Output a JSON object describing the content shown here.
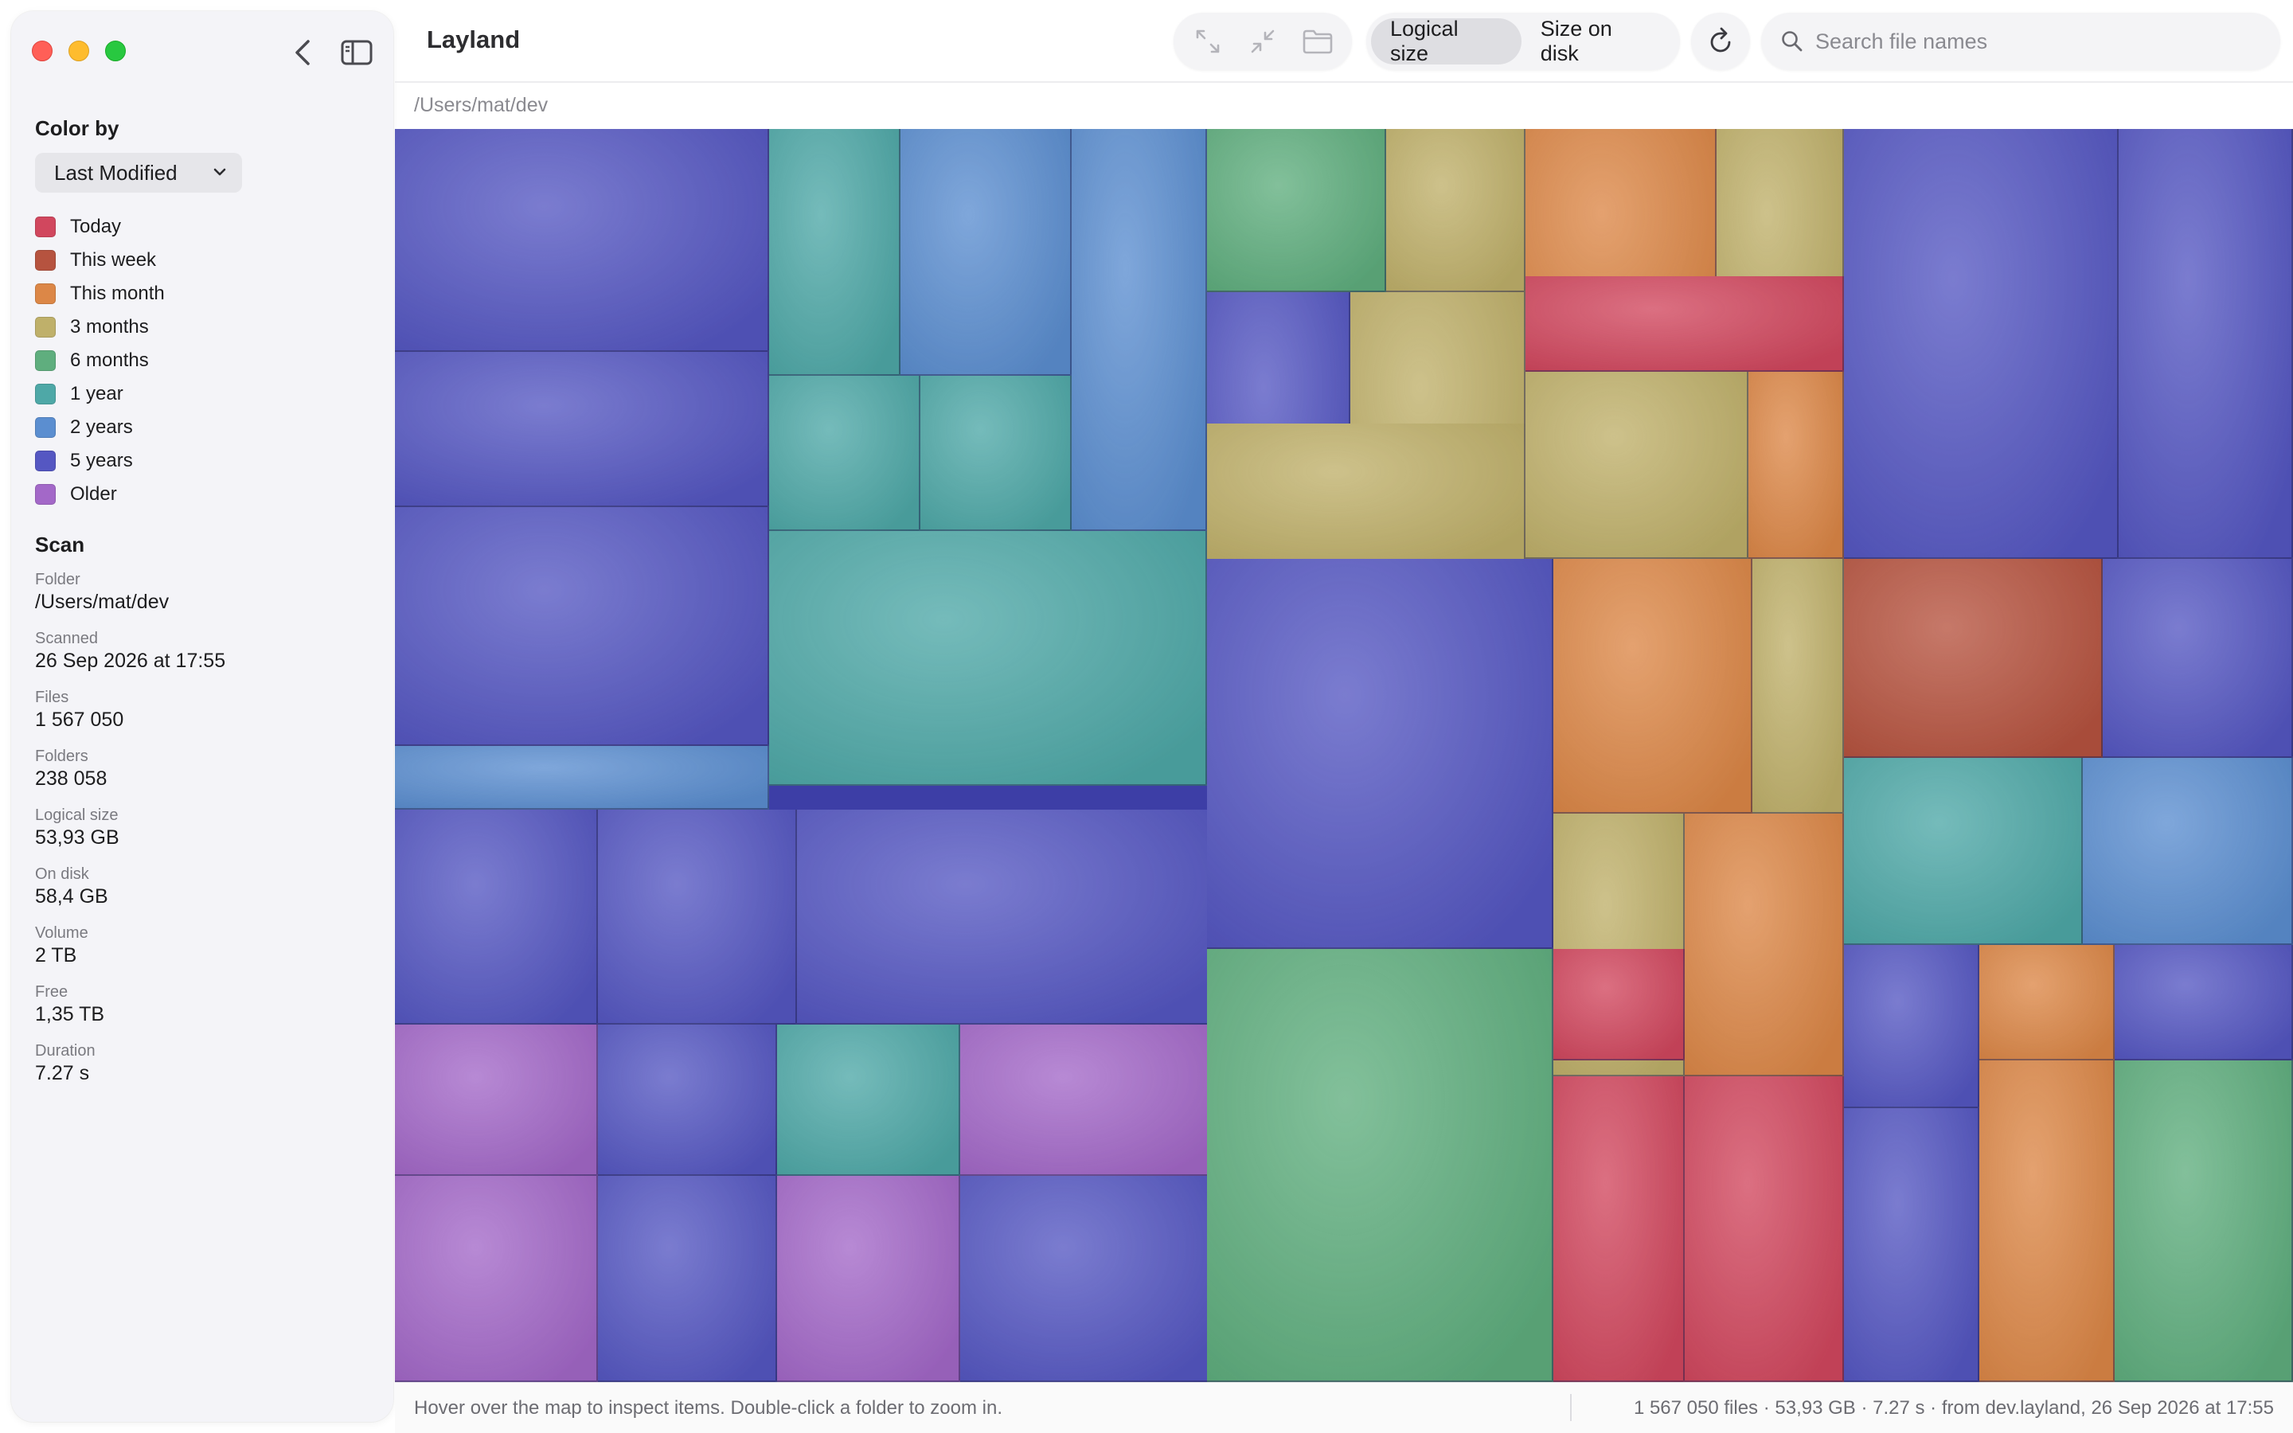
{
  "window": {
    "title": "Layland"
  },
  "sidebar": {
    "color_by_heading": "Color by",
    "color_by_value": "Last Modified",
    "legend": [
      {
        "label": "Today",
        "color": "#d1475e"
      },
      {
        "label": "This week",
        "color": "#b6533f"
      },
      {
        "label": "This month",
        "color": "#dc8747"
      },
      {
        "label": "3 months",
        "color": "#bfb06a"
      },
      {
        "label": "6 months",
        "color": "#5fae7e"
      },
      {
        "label": "1 year",
        "color": "#4ea8a7"
      },
      {
        "label": "2 years",
        "color": "#5b8ed0"
      },
      {
        "label": "5 years",
        "color": "#5557c2"
      },
      {
        "label": "Older",
        "color": "#a368c8"
      }
    ],
    "scan_heading": "Scan",
    "scan": [
      {
        "key": "Folder",
        "value": "/Users/mat/dev"
      },
      {
        "key": "Scanned",
        "value": "26 Sep 2026 at 17:55"
      },
      {
        "key": "Files",
        "value": "1 567 050"
      },
      {
        "key": "Folders",
        "value": "238 058"
      },
      {
        "key": "Logical size",
        "value": "53,93 GB"
      },
      {
        "key": "On disk",
        "value": "58,4 GB"
      },
      {
        "key": "Volume",
        "value": "2 TB"
      },
      {
        "key": "Free",
        "value": "1,35 TB"
      },
      {
        "key": "Duration",
        "value": "7.27 s"
      }
    ]
  },
  "toolbar": {
    "icons": [
      "expand-icon",
      "collapse-icon",
      "folder-icon",
      "refresh-icon",
      "search-icon"
    ],
    "size_modes": [
      {
        "label": "Logical size",
        "active": true
      },
      {
        "label": "Size on disk",
        "active": false
      }
    ],
    "search_placeholder": "Search file names"
  },
  "breadcrumb": "/Users/mat/dev",
  "status": {
    "hint": "Hover over the map to inspect items. Double-click a folder to zoom in.",
    "info": "1 567 050 files · 53,93 GB · 7.27 s · from dev.layland, 26 Sep 2026 at 17:55"
  }
}
